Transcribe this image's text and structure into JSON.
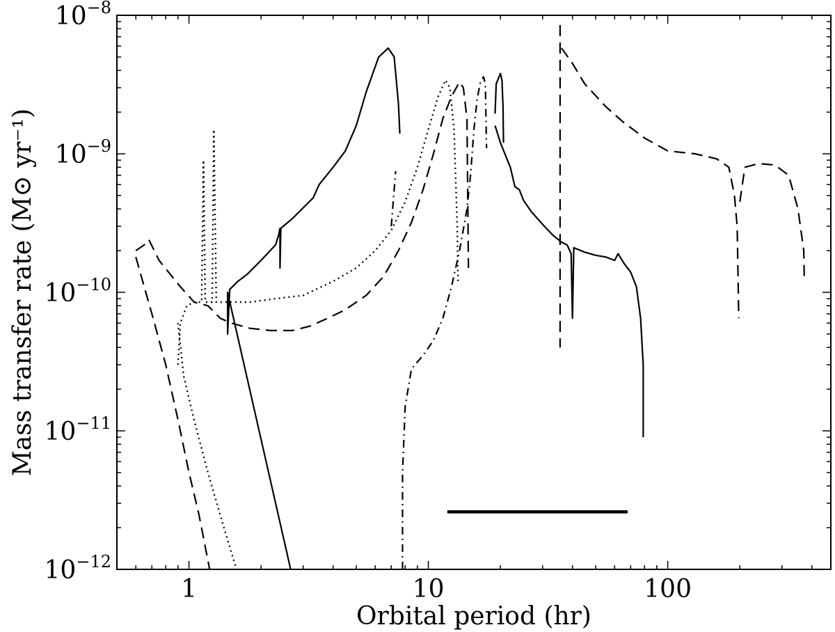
{
  "chart_data": {
    "type": "line",
    "xlabel": "Orbital period (hr)",
    "ylabel": "Mass transfer rate (M⊙ yr⁻¹)",
    "xscale": "log",
    "yscale": "log",
    "xlim": [
      0.5,
      480
    ],
    "ylim": [
      1e-12,
      1e-08
    ],
    "grid": false,
    "legend": "none",
    "xticks": [
      {
        "value": 1,
        "label": "1"
      },
      {
        "value": 10,
        "label": "10"
      },
      {
        "value": 100,
        "label": "100"
      }
    ],
    "yticks": [
      {
        "value": 1e-08,
        "label": "10",
        "exp": "−8"
      },
      {
        "value": 1e-09,
        "label": "10",
        "exp": "−9"
      },
      {
        "value": 1e-10,
        "label": "10",
        "exp": "−10"
      },
      {
        "value": 1e-11,
        "label": "10",
        "exp": "−11"
      },
      {
        "value": 1e-12,
        "label": "10",
        "exp": "−12"
      }
    ],
    "series": [
      {
        "style": "solid",
        "segments": [
          [
            [
              2.66,
              1e-12
            ],
            [
              1.45,
              1e-10
            ],
            [
              1.45,
              5e-11
            ],
            [
              1.48,
              1.05e-10
            ],
            [
              1.6,
              1.2e-10
            ],
            [
              1.75,
              1.35e-10
            ],
            [
              2.0,
              1.7e-10
            ],
            [
              2.3,
              2.2e-10
            ],
            [
              2.37,
              2.6e-10
            ],
            [
              2.4,
              2.9e-10
            ],
            [
              2.4,
              1.5e-10
            ],
            [
              2.42,
              2.9e-10
            ],
            [
              2.7,
              3.4e-10
            ],
            [
              3.3,
              4.8e-10
            ],
            [
              3.5,
              6e-10
            ],
            [
              4.0,
              8e-10
            ],
            [
              4.5,
              1.05e-09
            ],
            [
              5.0,
              1.6e-09
            ],
            [
              5.5,
              2.8e-09
            ],
            [
              6.2,
              5e-09
            ],
            [
              6.8,
              5.8e-09
            ],
            [
              7.2,
              5e-09
            ],
            [
              7.5,
              2.3e-09
            ],
            [
              7.6,
              1.4e-09
            ]
          ],
          [
            [
              19.0,
              1.95e-09
            ],
            [
              19.2,
              3.2e-09
            ],
            [
              20.0,
              3.8e-09
            ],
            [
              20.3,
              3.4e-09
            ],
            [
              20.5,
              2.2e-09
            ],
            [
              20.6,
              1.2e-09
            ]
          ],
          [
            [
              19.0,
              1.6e-09
            ],
            [
              20.0,
              1.2e-09
            ],
            [
              22.0,
              8e-10
            ],
            [
              23.0,
              5.8e-10
            ],
            [
              24.0,
              5.5e-10
            ],
            [
              25.0,
              4.6e-10
            ],
            [
              27.0,
              3.8e-10
            ],
            [
              30.0,
              3.1e-10
            ],
            [
              33.0,
              2.6e-10
            ],
            [
              36.0,
              2.3e-10
            ],
            [
              38.0,
              2.2e-10
            ],
            [
              39.5,
              1.9e-10
            ],
            [
              40.0,
              6.5e-11
            ],
            [
              40.5,
              2.1e-10
            ],
            [
              45.0,
              1.95e-10
            ],
            [
              50.0,
              1.85e-10
            ],
            [
              55.0,
              1.8e-10
            ],
            [
              60.0,
              1.7e-10
            ],
            [
              62.0,
              1.9e-10
            ],
            [
              66.0,
              1.6e-10
            ],
            [
              70.0,
              1.4e-10
            ],
            [
              74.0,
              1.1e-10
            ],
            [
              77.0,
              6.5e-11
            ],
            [
              79.0,
              3e-11
            ],
            [
              79.0,
              9e-12
            ]
          ]
        ]
      },
      {
        "style": "dashed",
        "segments": [
          [
            [
              0.6,
              2e-10
            ],
            [
              0.65,
              2.2e-10
            ],
            [
              0.68,
              2.4e-10
            ],
            [
              0.75,
              1.7e-10
            ],
            [
              0.85,
              1.3e-10
            ],
            [
              0.92,
              1.1e-10
            ],
            [
              1.05,
              8.5e-11
            ],
            [
              1.2,
              8e-11
            ],
            [
              1.35,
              6.5e-11
            ],
            [
              1.5,
              6e-11
            ],
            [
              1.8,
              5.5e-11
            ],
            [
              2.2,
              5.3e-11
            ],
            [
              2.7,
              5.3e-11
            ],
            [
              3.2,
              5.7e-11
            ],
            [
              3.8,
              6.5e-11
            ],
            [
              4.5,
              7.5e-11
            ],
            [
              5.5,
              9.5e-11
            ],
            [
              6.5,
              1.3e-10
            ],
            [
              7.5,
              2e-10
            ],
            [
              8.5,
              3.2e-10
            ],
            [
              9.5,
              5.5e-10
            ],
            [
              10.5,
              1e-09
            ],
            [
              11.5,
              1.8e-09
            ],
            [
              12.5,
              2.6e-09
            ],
            [
              13.5,
              3.3e-09
            ],
            [
              14.0,
              3e-09
            ],
            [
              14.5,
              1.8e-09
            ],
            [
              14.7,
              1.5e-10
            ]
          ],
          [
            [
              0.6,
              1.8e-10
            ],
            [
              0.65,
              1.1e-10
            ],
            [
              0.7,
              7e-11
            ],
            [
              0.8,
              3e-11
            ],
            [
              0.9,
              1.2e-11
            ],
            [
              1.0,
              5e-12
            ],
            [
              1.1,
              2.5e-12
            ],
            [
              1.22,
              1e-12
            ]
          ],
          [
            [
              35.5,
              8.5e-09
            ],
            [
              35.5,
              4e-11
            ]
          ],
          [
            [
              36.0,
              5.8e-09
            ],
            [
              40.0,
              4.5e-09
            ],
            [
              45.0,
              3.2e-09
            ],
            [
              55.0,
              2.2e-09
            ],
            [
              65.0,
              1.7e-09
            ],
            [
              80.0,
              1.3e-09
            ],
            [
              100.0,
              1.05e-09
            ],
            [
              130.0,
              1e-09
            ],
            [
              160.0,
              9.2e-10
            ],
            [
              180.0,
              8e-10
            ],
            [
              190.0,
              5e-10
            ],
            [
              195.0,
              3e-10
            ],
            [
              198.0,
              6.5e-11
            ]
          ],
          [
            [
              200.0,
              4.5e-10
            ],
            [
              210.0,
              8e-10
            ],
            [
              240.0,
              8.5e-10
            ],
            [
              280.0,
              8.3e-10
            ],
            [
              320.0,
              7e-10
            ],
            [
              350.0,
              4e-10
            ],
            [
              370.0,
              2e-10
            ],
            [
              372.0,
              1.2e-10
            ]
          ]
        ]
      },
      {
        "style": "dotted",
        "segments": [
          [
            [
              0.9,
              3e-11
            ],
            [
              0.92,
              6e-11
            ],
            [
              0.98,
              8e-11
            ],
            [
              1.05,
              8.5e-11
            ],
            [
              1.13,
              8.5e-11
            ],
            [
              1.15,
              9e-10
            ],
            [
              1.17,
              8.5e-11
            ],
            [
              1.25,
              8.5e-11
            ],
            [
              1.27,
              1.5e-09
            ],
            [
              1.3,
              8.5e-11
            ],
            [
              1.45,
              8.5e-11
            ],
            [
              1.8,
              8.5e-11
            ],
            [
              2.3,
              9e-11
            ],
            [
              3.0,
              9.5e-11
            ],
            [
              4.0,
              1.2e-10
            ],
            [
              5.0,
              1.5e-10
            ],
            [
              6.0,
              2e-10
            ],
            [
              7.0,
              2.8e-10
            ],
            [
              8.0,
              4.5e-10
            ],
            [
              9.0,
              8e-10
            ],
            [
              10.0,
              1.5e-09
            ],
            [
              11.0,
              2.6e-09
            ],
            [
              11.8,
              3.4e-09
            ],
            [
              12.3,
              3e-09
            ],
            [
              12.8,
              1.5e-09
            ],
            [
              13.2,
              3e-10
            ],
            [
              13.3,
              1.2e-10
            ]
          ],
          [
            [
              0.9,
              6e-11
            ],
            [
              0.95,
              2.5e-11
            ],
            [
              1.05,
              1.2e-11
            ],
            [
              1.2,
              5e-12
            ],
            [
              1.4,
              2e-12
            ],
            [
              1.58,
              1e-12
            ]
          ]
        ]
      },
      {
        "style": "dashdot",
        "segments": [
          [
            [
              7.8,
              1e-12
            ],
            [
              7.8,
              5e-12
            ],
            [
              8.0,
              1.5e-11
            ],
            [
              8.5,
              2.8e-11
            ],
            [
              9.5,
              3.5e-11
            ],
            [
              10.5,
              4.5e-11
            ],
            [
              11.5,
              6.5e-11
            ],
            [
              12.5,
              1.1e-10
            ],
            [
              13.5,
              2e-10
            ],
            [
              14.5,
              4e-10
            ],
            [
              15.0,
              7e-10
            ],
            [
              15.5,
              1.5e-09
            ],
            [
              16.0,
              2.5e-09
            ],
            [
              16.5,
              3.3e-09
            ],
            [
              17.0,
              3.6e-09
            ],
            [
              17.3,
              3.2e-09
            ],
            [
              17.5,
              1.1e-09
            ]
          ],
          [
            [
              7.0,
              3e-10
            ],
            [
              7.3,
              7.5e-10
            ]
          ]
        ]
      },
      {
        "style": "thick",
        "segments": [
          [
            [
              12.0,
              2.6e-12
            ],
            [
              68.0,
              2.6e-12
            ]
          ]
        ]
      }
    ]
  }
}
